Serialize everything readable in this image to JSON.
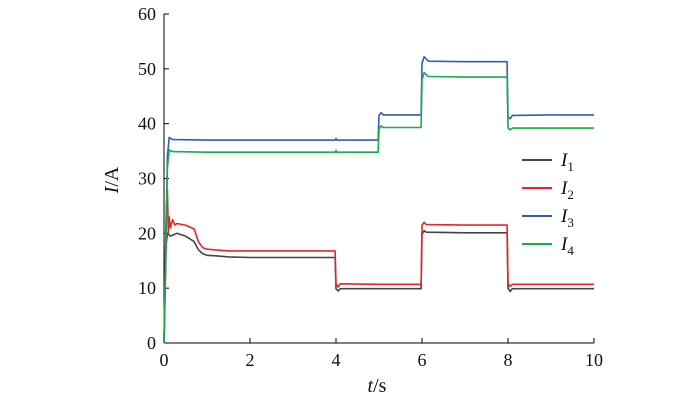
{
  "chart_data": {
    "type": "line",
    "xlabel": {
      "var": "t",
      "unit": "/s"
    },
    "ylabel": {
      "var": "I",
      "unit": "/A"
    },
    "xlim": [
      0,
      10
    ],
    "ylim": [
      0,
      60
    ],
    "xticks": [
      "0",
      "2",
      "4",
      "6",
      "8",
      "10"
    ],
    "yticks": [
      "0",
      "10",
      "20",
      "30",
      "40",
      "50",
      "60"
    ],
    "grid": false,
    "legend_position": "right",
    "series": [
      {
        "name": "I",
        "sub": "1",
        "color": "#444444",
        "points": [
          [
            0,
            0
          ],
          [
            0.05,
            18
          ],
          [
            0.08,
            20
          ],
          [
            0.15,
            19.5
          ],
          [
            0.3,
            20
          ],
          [
            0.5,
            19.5
          ],
          [
            0.7,
            18.5
          ],
          [
            0.8,
            17
          ],
          [
            0.9,
            16.3
          ],
          [
            1.0,
            16
          ],
          [
            1.2,
            15.9
          ],
          [
            1.5,
            15.7
          ],
          [
            2,
            15.6
          ],
          [
            3,
            15.6
          ],
          [
            3.98,
            15.6
          ],
          [
            4.0,
            9.9
          ],
          [
            4.05,
            9.5
          ],
          [
            4.1,
            9.9
          ],
          [
            5,
            9.9
          ],
          [
            5.98,
            9.9
          ],
          [
            6.0,
            19.8
          ],
          [
            6.05,
            20.5
          ],
          [
            6.1,
            20.2
          ],
          [
            7,
            20.1
          ],
          [
            7.98,
            20.1
          ],
          [
            8.0,
            10
          ],
          [
            8.05,
            9.4
          ],
          [
            8.1,
            9.9
          ],
          [
            9,
            9.9
          ],
          [
            10,
            9.9
          ]
        ]
      },
      {
        "name": "I",
        "sub": "2",
        "color": "#e8242a",
        "points": [
          [
            0,
            0
          ],
          [
            0.05,
            24
          ],
          [
            0.08,
            28
          ],
          [
            0.1,
            20
          ],
          [
            0.12,
            23
          ],
          [
            0.15,
            21
          ],
          [
            0.2,
            22.5
          ],
          [
            0.25,
            21.5
          ],
          [
            0.3,
            21.8
          ],
          [
            0.5,
            21.5
          ],
          [
            0.7,
            20.8
          ],
          [
            0.8,
            18.5
          ],
          [
            0.9,
            17.4
          ],
          [
            1.0,
            17.1
          ],
          [
            1.5,
            16.8
          ],
          [
            2,
            16.8
          ],
          [
            3,
            16.8
          ],
          [
            3.98,
            16.8
          ],
          [
            4.0,
            10.8
          ],
          [
            4.05,
            10.2
          ],
          [
            4.1,
            10.8
          ],
          [
            5,
            10.7
          ],
          [
            5.98,
            10.7
          ],
          [
            6.0,
            21.5
          ],
          [
            6.05,
            22
          ],
          [
            6.1,
            21.6
          ],
          [
            7,
            21.5
          ],
          [
            7.98,
            21.5
          ],
          [
            8.0,
            10.8
          ],
          [
            8.05,
            10.3
          ],
          [
            8.1,
            10.7
          ],
          [
            9,
            10.7
          ],
          [
            10,
            10.7
          ]
        ]
      },
      {
        "name": "I",
        "sub": "3",
        "color": "#2f5db8",
        "points": [
          [
            0,
            0
          ],
          [
            0.08,
            34
          ],
          [
            0.12,
            37.5
          ],
          [
            0.2,
            37.1
          ],
          [
            1,
            37
          ],
          [
            2,
            37
          ],
          [
            3,
            37
          ],
          [
            3.98,
            37
          ],
          [
            4.0,
            37.3
          ],
          [
            4.02,
            37
          ],
          [
            4.98,
            37
          ],
          [
            5.0,
            41.5
          ],
          [
            5.05,
            42
          ],
          [
            5.1,
            41.6
          ],
          [
            5.98,
            41.6
          ],
          [
            6.0,
            51
          ],
          [
            6.05,
            52.2
          ],
          [
            6.15,
            51.4
          ],
          [
            7,
            51.3
          ],
          [
            7.98,
            51.3
          ],
          [
            8.0,
            41.2
          ],
          [
            8.05,
            40.9
          ],
          [
            8.1,
            41.5
          ],
          [
            9,
            41.6
          ],
          [
            10,
            41.6
          ]
        ]
      },
      {
        "name": "I",
        "sub": "4",
        "color": "#19ab4b",
        "points": [
          [
            0,
            0
          ],
          [
            0.08,
            32
          ],
          [
            0.12,
            35.2
          ],
          [
            0.2,
            34.9
          ],
          [
            1,
            34.8
          ],
          [
            2,
            34.8
          ],
          [
            3,
            34.8
          ],
          [
            3.98,
            34.8
          ],
          [
            4.0,
            35.1
          ],
          [
            4.02,
            34.8
          ],
          [
            4.98,
            34.8
          ],
          [
            5.0,
            39
          ],
          [
            5.05,
            39.6
          ],
          [
            5.1,
            39.3
          ],
          [
            5.98,
            39.3
          ],
          [
            6.0,
            48
          ],
          [
            6.05,
            49.3
          ],
          [
            6.15,
            48.6
          ],
          [
            7,
            48.5
          ],
          [
            7.98,
            48.5
          ],
          [
            8.0,
            39.2
          ],
          [
            8.05,
            38.9
          ],
          [
            8.1,
            39.2
          ],
          [
            9,
            39.2
          ],
          [
            10,
            39.2
          ]
        ]
      }
    ]
  }
}
